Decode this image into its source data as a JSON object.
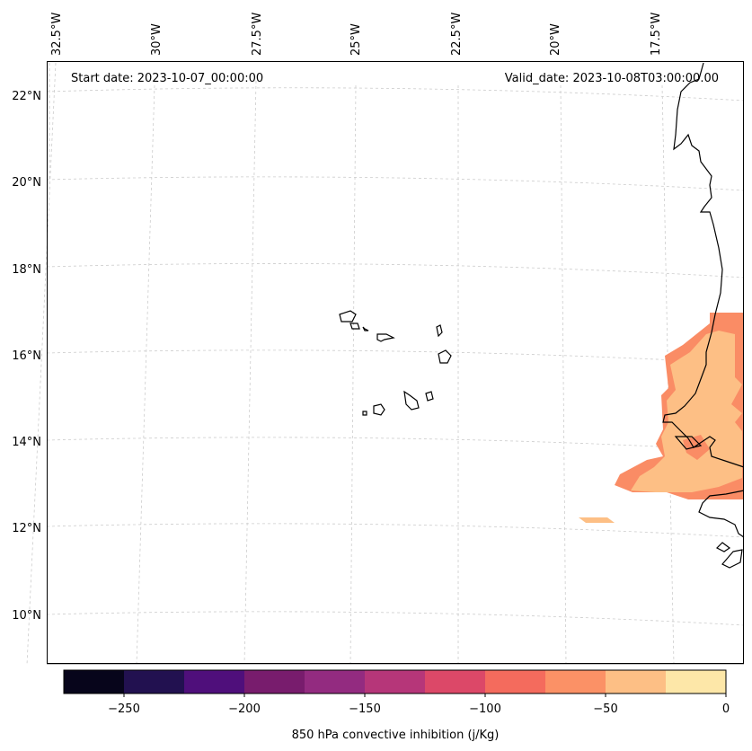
{
  "header": {
    "start_date": "Start date: 2023-10-07_00:00:00",
    "valid_date": "Valid_date: 2023-10-08T03:00:00.00"
  },
  "map": {
    "lon_labels": [
      "32.5°W",
      "30°W",
      "27.5°W",
      "25°W",
      "22.5°W",
      "20°W",
      "17.5°W"
    ],
    "lat_labels": [
      "22°N",
      "20°N",
      "18°N",
      "16°N",
      "14°N",
      "12°N",
      "10°N"
    ],
    "gridlines": "dashed",
    "field_colors": {
      "dark": "#fa8c65",
      "light": "#fdbf85"
    },
    "coastline_color": "#000000"
  },
  "colorbar": {
    "label": "850 hPa convective inhibition (j/Kg)",
    "ticks": [
      "−250",
      "−200",
      "−150",
      "−100",
      "−50",
      "0"
    ],
    "range": [
      -275,
      0
    ],
    "colors": [
      "#07051b",
      "#221150",
      "#4f0f7b",
      "#781c6d",
      "#932b80",
      "#b63679",
      "#dc4868",
      "#f46b5d",
      "#fb9166",
      "#fdbf85",
      "#fde7a8"
    ]
  }
}
